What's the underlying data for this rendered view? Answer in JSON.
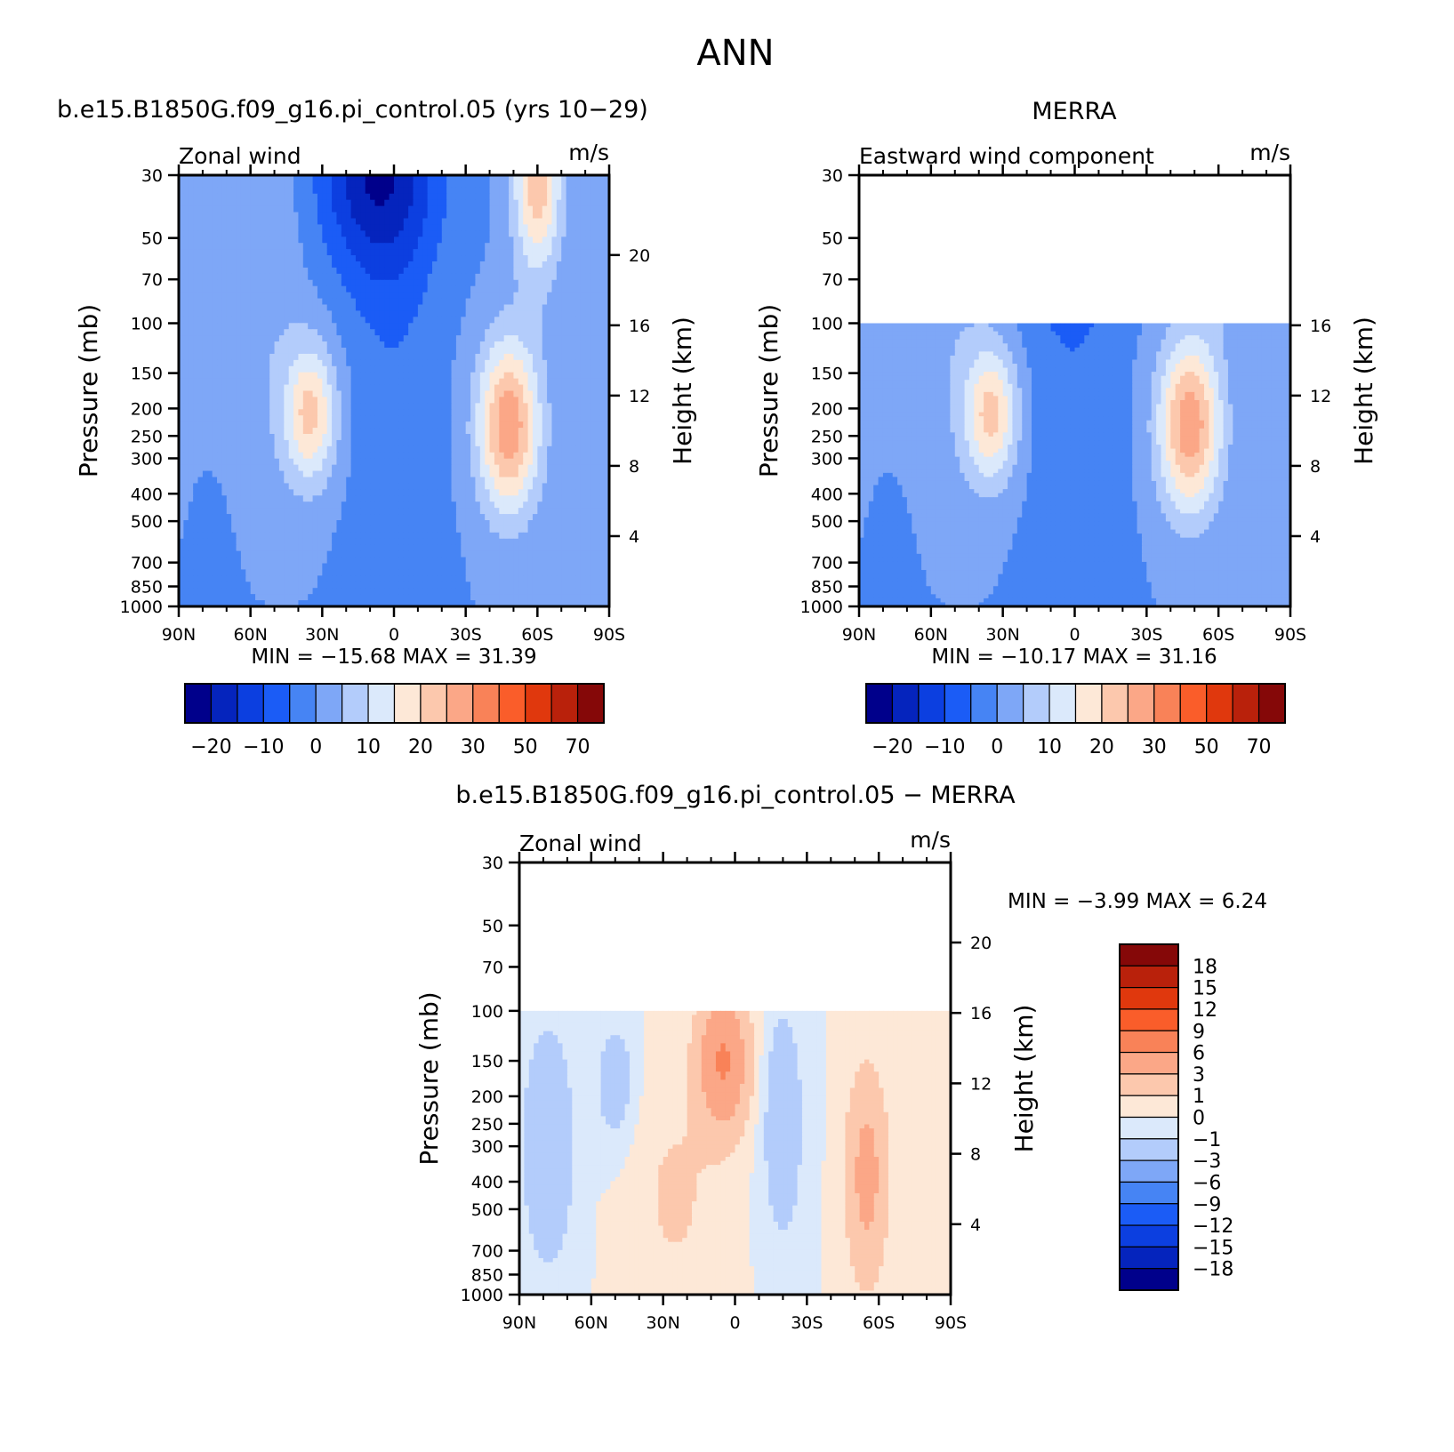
{
  "figure": {
    "title": "ANN"
  },
  "chart_data": [
    {
      "type": "heatmap",
      "id": "model",
      "case_title": "b.e15.B1850G.f09_g16.pi_control.05 (yrs 10−29)",
      "left_label": "Zonal wind",
      "units": "m/s",
      "ylabel": "Pressure (mb)",
      "y2label": "Height (km)",
      "x_ticks": [
        "90N",
        "60N",
        "30N",
        "0",
        "30S",
        "60S",
        "90S"
      ],
      "y_ticks": [
        "30",
        "50",
        "70",
        "100",
        "150",
        "200",
        "250",
        "300",
        "400",
        "500",
        "700",
        "850",
        "1000"
      ],
      "y2_ticks": [
        "20",
        "16",
        "12",
        "8",
        "4"
      ],
      "min_label": "MIN =",
      "min_value": "−15.68",
      "max_label": "MAX =",
      "max_value": "31.39",
      "cbar_labels": [
        "−20",
        "−10",
        "0",
        "10",
        "20",
        "30",
        "50",
        "70"
      ],
      "data_top_mb": 30,
      "features": [
        {
          "lat": 35,
          "p": 200,
          "v": 21
        },
        {
          "lat": -50,
          "p": 200,
          "v": 31.39
        },
        {
          "lat": -60,
          "p": 30,
          "v": 28
        },
        {
          "lat": 10,
          "p": 30,
          "v": -15.68
        }
      ]
    },
    {
      "type": "heatmap",
      "id": "obs",
      "case_title": "MERRA",
      "left_label": "Eastward wind component",
      "units": "m/s",
      "ylabel": "Pressure (mb)",
      "y2label": "Height (km)",
      "x_ticks": [
        "90N",
        "60N",
        "30N",
        "0",
        "30S",
        "60S",
        "90S"
      ],
      "y_ticks": [
        "30",
        "50",
        "70",
        "100",
        "150",
        "200",
        "250",
        "300",
        "400",
        "500",
        "700",
        "850",
        "1000"
      ],
      "y2_ticks": [
        "16",
        "12",
        "8",
        "4"
      ],
      "min_label": "MIN =",
      "min_value": "−10.17",
      "max_label": "MAX =",
      "max_value": "31.16",
      "cbar_labels": [
        "−20",
        "−10",
        "0",
        "10",
        "20",
        "30",
        "50",
        "70"
      ],
      "data_top_mb": 100,
      "features": [
        {
          "lat": 35,
          "p": 200,
          "v": 22
        },
        {
          "lat": -40,
          "p": 200,
          "v": 31.16
        },
        {
          "lat": 0,
          "p": 200,
          "v": -5
        }
      ]
    },
    {
      "type": "heatmap",
      "id": "diff",
      "case_title": "b.e15.B1850G.f09_g16.pi_control.05 − MERRA",
      "left_label": "Zonal wind",
      "units": "m/s",
      "ylabel": "Pressure (mb)",
      "y2label": "Height (km)",
      "x_ticks": [
        "90N",
        "60N",
        "30N",
        "0",
        "30S",
        "60S",
        "90S"
      ],
      "y_ticks": [
        "30",
        "50",
        "70",
        "100",
        "150",
        "200",
        "250",
        "300",
        "400",
        "500",
        "700",
        "850",
        "1000"
      ],
      "y2_ticks": [
        "20",
        "16",
        "12",
        "8",
        "4"
      ],
      "min_label": "MIN =",
      "min_value": "−3.99",
      "max_label": "MAX =",
      "max_value": "6.24",
      "cbar_labels": [
        "18",
        "15",
        "12",
        "9",
        "6",
        "3",
        "1",
        "0",
        "−1",
        "−3",
        "−6",
        "−9",
        "−12",
        "−15",
        "−18"
      ],
      "data_top_mb": 100,
      "features": [
        {
          "lat": 0,
          "p": 150,
          "v": 6.24
        },
        {
          "lat": -55,
          "p": 400,
          "v": 4
        },
        {
          "lat": 75,
          "p": 300,
          "v": -3.99
        }
      ]
    }
  ],
  "colors": {
    "fullfield": [
      "#00008b",
      "#0524bd",
      "#0c3fe0",
      "#1b5cf6",
      "#4684f4",
      "#7ea7f7",
      "#b3ccfb",
      "#dbe9fb",
      "#fde8d7",
      "#fcc8ad",
      "#fba787",
      "#f98258",
      "#fa5d2a",
      "#e0380d",
      "#b9210b",
      "#850808"
    ],
    "diff": [
      "#00008b",
      "#0524bd",
      "#0c3fe0",
      "#1b5cf6",
      "#4684f4",
      "#7ea7f7",
      "#b3ccfb",
      "#dbe9fb",
      "#fde8d7",
      "#fcc8ad",
      "#fba787",
      "#f98258",
      "#fa5d2a",
      "#e0380d",
      "#b9210b",
      "#850808"
    ]
  }
}
